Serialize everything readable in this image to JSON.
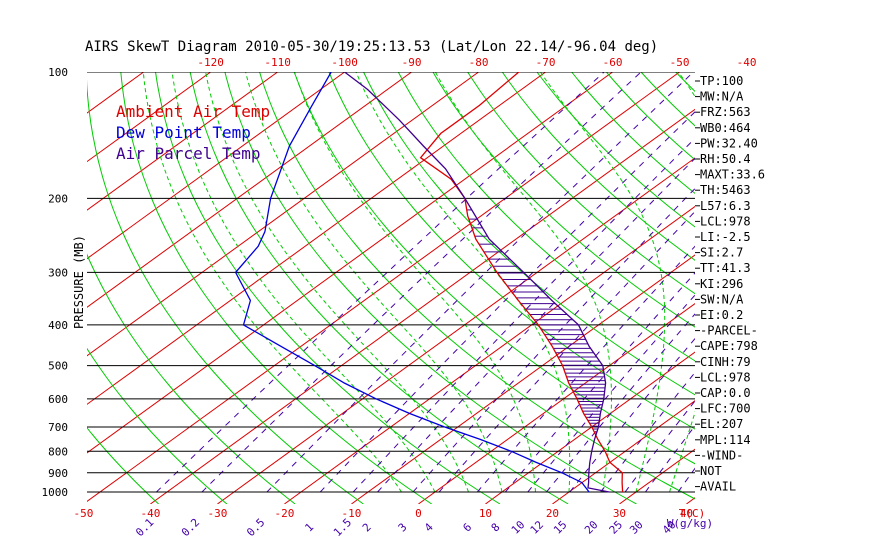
{
  "chart_data": {
    "type": "line",
    "title": "AIRS SkewT Diagram 2010-05-30/19:25:13.53 (Lat/Lon 22.14/-96.04 deg)",
    "ylabel": "PRESSURE (MB)",
    "xlabel_temp": "T(C)",
    "xlabel_mix": "W(g/kg)",
    "pressure_ticks": [
      "100",
      "200",
      "300",
      "400",
      "500",
      "600",
      "700",
      "800",
      "900",
      "1000"
    ],
    "pressure_levels": [
      100,
      200,
      300,
      400,
      500,
      600,
      700,
      800,
      900,
      1000
    ],
    "top_temp_ticks": [
      "-120",
      "-110",
      "-100",
      "-90",
      "-80",
      "-70",
      "-60",
      "-50",
      "-40"
    ],
    "bottom_temp_ticks": [
      "-50",
      "-40",
      "-30",
      "-20",
      "-10",
      "0",
      "10",
      "20",
      "30",
      "40"
    ],
    "mixing_ratio_ticks": [
      "0.1",
      "0.2",
      "0.5",
      "1",
      "1.5",
      "2",
      "3",
      "4",
      "6",
      "8",
      "10",
      "12",
      "15",
      "20",
      "25",
      "30",
      "40"
    ],
    "skew_dx": 0.35,
    "dry_adiabat_thetas": [
      230,
      240,
      250,
      260,
      270,
      280,
      290,
      300,
      310,
      320,
      330,
      340,
      350,
      360,
      370,
      380,
      390,
      400,
      410,
      420,
      430,
      440,
      450,
      460
    ],
    "moist_adiabat_thetaw": [
      -5,
      0,
      5,
      10,
      15,
      20,
      25,
      30,
      35,
      40
    ],
    "legend": [
      {
        "label": "Ambient Air Temp",
        "color": "#dd0000"
      },
      {
        "label": "Dew Point Temp",
        "color": "#0000dd"
      },
      {
        "label": "Air Parcel Temp",
        "color": "#400090"
      }
    ],
    "series": [
      {
        "name": "Ambient Air Temp",
        "color": "#dd0000",
        "points": [
          [
            1000,
            28
          ],
          [
            950,
            26
          ],
          [
            900,
            24
          ],
          [
            850,
            20
          ],
          [
            800,
            17
          ],
          [
            750,
            13.5
          ],
          [
            700,
            10
          ],
          [
            650,
            6
          ],
          [
            600,
            2
          ],
          [
            550,
            -2.5
          ],
          [
            500,
            -7
          ],
          [
            450,
            -12.5
          ],
          [
            400,
            -19
          ],
          [
            350,
            -27
          ],
          [
            300,
            -36
          ],
          [
            250,
            -46
          ],
          [
            220,
            -52
          ],
          [
            200,
            -56
          ],
          [
            180,
            -62
          ],
          [
            160,
            -71
          ],
          [
            140,
            -73
          ],
          [
            120,
            -73
          ],
          [
            100,
            -74
          ]
        ]
      },
      {
        "name": "Dew Point Temp",
        "color": "#0000dd",
        "points": [
          [
            1000,
            23
          ],
          [
            950,
            20
          ],
          [
            900,
            15
          ],
          [
            850,
            9
          ],
          [
            800,
            3
          ],
          [
            750,
            -4
          ],
          [
            700,
            -12
          ],
          [
            650,
            -20
          ],
          [
            600,
            -28
          ],
          [
            550,
            -36
          ],
          [
            500,
            -44
          ],
          [
            450,
            -53
          ],
          [
            400,
            -63
          ],
          [
            350,
            -67
          ],
          [
            300,
            -75
          ],
          [
            260,
            -77
          ],
          [
            240,
            -79
          ],
          [
            200,
            -85
          ],
          [
            150,
            -93
          ],
          [
            120,
            -98
          ],
          [
            100,
            -102
          ]
        ]
      },
      {
        "name": "Air Parcel Temp",
        "color": "#400090",
        "points": [
          [
            1000,
            26
          ],
          [
            978,
            22
          ],
          [
            950,
            21
          ],
          [
            900,
            19
          ],
          [
            850,
            17
          ],
          [
            800,
            15
          ],
          [
            750,
            13
          ],
          [
            700,
            11
          ],
          [
            650,
            8.5
          ],
          [
            600,
            6
          ],
          [
            550,
            3
          ],
          [
            500,
            -1
          ],
          [
            450,
            -7
          ],
          [
            400,
            -13
          ],
          [
            350,
            -22
          ],
          [
            300,
            -32
          ],
          [
            250,
            -44
          ],
          [
            200,
            -56
          ],
          [
            170,
            -65
          ],
          [
            150,
            -73
          ],
          [
            130,
            -82
          ],
          [
            110,
            -93
          ],
          [
            100,
            -100
          ]
        ]
      }
    ]
  },
  "indices": [
    "TP:100",
    "MW:N/A",
    "FRZ:563",
    "WB0:464",
    "PW:32.40",
    "RH:50.4",
    "MAXT:33.6",
    "TH:5463",
    "L57:6.3",
    "LCL:978",
    "LI:-2.5",
    "SI:2.7",
    "TT:41.3",
    "KI:296",
    "SW:N/A",
    "EI:0.2",
    "-PARCEL-",
    "CAPE:798",
    "CINH:79",
    "LCL:978",
    "CAP:0.0",
    "LFC:700",
    "EL:207",
    "MPL:114",
    "-WIND-",
    "NOT",
    "AVAIL"
  ],
  "colors": {
    "temperature": "#dd0000",
    "dewpoint": "#0000dd",
    "parcel": "#400090",
    "dry_adiabat": "#00cc00",
    "moist_adiabat": "#00cc00",
    "mixing_ratio": "#4400aa",
    "isotherm": "#dd0000",
    "isobar": "#000000",
    "cape_hatch": "#400090",
    "labels": "#000000"
  }
}
